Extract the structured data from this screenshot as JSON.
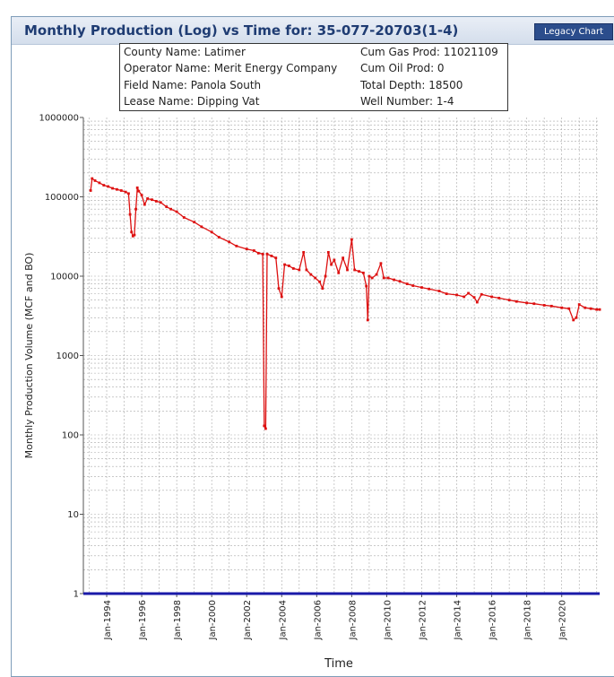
{
  "header": {
    "title": "Monthly Production (Log) vs Time for: 35-077-20703(1-4)",
    "legacy_button": "Legacy Chart"
  },
  "info": {
    "county": "County Name:  Latimer",
    "operator": "Operator Name:  Merit Energy Company",
    "field": "Field Name:  Panola South",
    "lease": "Lease Name:  Dipping Vat",
    "cum_gas": "Cum Gas Prod:  11021109",
    "cum_oil": "Cum Oil Prod:  0",
    "total_depth": "Total Depth:  18500",
    "well_number": "Well Number:  1-4"
  },
  "chart_data": {
    "type": "line",
    "title": "Monthly Production (Log) vs Time for: 35-077-20703(1-4)",
    "xlabel": "Time",
    "ylabel": "Monthly Production Volume (MCF and BO)",
    "y_scale": "log",
    "ylim": [
      1,
      1000000
    ],
    "xlim": [
      "1992-09",
      "2022-03"
    ],
    "grid": true,
    "y_ticks": [
      "1",
      "10",
      "100",
      "1000",
      "10000",
      "100000",
      "1000000"
    ],
    "x_ticks": [
      "Jan-1994",
      "Jan-1996",
      "Jan-1998",
      "Jan-2000",
      "Jan-2002",
      "Jan-2004",
      "Jan-2006",
      "Jan-2008",
      "Jan-2010",
      "Jan-2012",
      "Jan-2014",
      "Jan-2016",
      "Jan-2018",
      "Jan-2020"
    ],
    "series": [
      {
        "color": "#dd1111",
        "points": [
          [
            "1993-02",
            120000
          ],
          [
            "1993-03",
            170000
          ],
          [
            "1993-05",
            160000
          ],
          [
            "1993-08",
            150000
          ],
          [
            "1993-11",
            140000
          ],
          [
            "1994-02",
            135000
          ],
          [
            "1994-05",
            128000
          ],
          [
            "1994-08",
            124000
          ],
          [
            "1994-11",
            120000
          ],
          [
            "1995-02",
            115000
          ],
          [
            "1995-04",
            110000
          ],
          [
            "1995-05",
            60000
          ],
          [
            "1995-06",
            36000
          ],
          [
            "1995-07",
            32000
          ],
          [
            "1995-08",
            33000
          ],
          [
            "1995-09",
            70000
          ],
          [
            "1995-10",
            130000
          ],
          [
            "1995-11",
            118000
          ],
          [
            "1996-01",
            105000
          ],
          [
            "1996-03",
            80000
          ],
          [
            "1996-05",
            95000
          ],
          [
            "1996-08",
            92000
          ],
          [
            "1996-11",
            88000
          ],
          [
            "1997-02",
            85000
          ],
          [
            "1997-06",
            75000
          ],
          [
            "1997-09",
            70000
          ],
          [
            "1998-01",
            65000
          ],
          [
            "1998-06",
            55000
          ],
          [
            "1999-01",
            48000
          ],
          [
            "1999-06",
            42000
          ],
          [
            "2000-01",
            36000
          ],
          [
            "2000-06",
            31000
          ],
          [
            "2001-01",
            27000
          ],
          [
            "2001-06",
            24000
          ],
          [
            "2002-01",
            22000
          ],
          [
            "2002-06",
            21000
          ],
          [
            "2002-09",
            19500
          ],
          [
            "2002-12",
            19000
          ],
          [
            "2003-01",
            130
          ],
          [
            "2003-02",
            120
          ],
          [
            "2003-03",
            19000
          ],
          [
            "2003-06",
            18000
          ],
          [
            "2003-09",
            17000
          ],
          [
            "2003-11",
            7000
          ],
          [
            "2004-01",
            5500
          ],
          [
            "2004-03",
            14000
          ],
          [
            "2004-06",
            13500
          ],
          [
            "2004-09",
            12500
          ],
          [
            "2005-01",
            12000
          ],
          [
            "2005-04",
            20000
          ],
          [
            "2005-06",
            12000
          ],
          [
            "2005-09",
            10500
          ],
          [
            "2005-12",
            9500
          ],
          [
            "2006-03",
            8500
          ],
          [
            "2006-05",
            7000
          ],
          [
            "2006-07",
            10000
          ],
          [
            "2006-09",
            20000
          ],
          [
            "2006-11",
            14000
          ],
          [
            "2007-01",
            16000
          ],
          [
            "2007-04",
            11000
          ],
          [
            "2007-07",
            17000
          ],
          [
            "2007-10",
            12000
          ],
          [
            "2008-01",
            29000
          ],
          [
            "2008-03",
            12000
          ],
          [
            "2008-06",
            11500
          ],
          [
            "2008-09",
            11000
          ],
          [
            "2008-11",
            7500
          ],
          [
            "2008-12",
            2800
          ],
          [
            "2009-01",
            10000
          ],
          [
            "2009-03",
            9500
          ],
          [
            "2009-06",
            10500
          ],
          [
            "2009-09",
            14500
          ],
          [
            "2009-11",
            9500
          ],
          [
            "2010-02",
            9500
          ],
          [
            "2010-06",
            9000
          ],
          [
            "2010-10",
            8600
          ],
          [
            "2011-03",
            8000
          ],
          [
            "2011-07",
            7600
          ],
          [
            "2012-01",
            7200
          ],
          [
            "2012-06",
            6900
          ],
          [
            "2013-01",
            6500
          ],
          [
            "2013-06",
            6000
          ],
          [
            "2014-01",
            5800
          ],
          [
            "2014-06",
            5500
          ],
          [
            "2014-09",
            6100
          ],
          [
            "2015-01",
            5400
          ],
          [
            "2015-03",
            4700
          ],
          [
            "2015-06",
            5900
          ],
          [
            "2016-01",
            5500
          ],
          [
            "2016-06",
            5300
          ],
          [
            "2017-01",
            5000
          ],
          [
            "2017-06",
            4800
          ],
          [
            "2018-01",
            4600
          ],
          [
            "2018-06",
            4500
          ],
          [
            "2019-01",
            4300
          ],
          [
            "2019-06",
            4200
          ],
          [
            "2020-01",
            4000
          ],
          [
            "2020-06",
            3900
          ],
          [
            "2020-09",
            2800
          ],
          [
            "2020-11",
            3000
          ],
          [
            "2021-01",
            4400
          ],
          [
            "2021-05",
            4000
          ],
          [
            "2021-09",
            3900
          ],
          [
            "2022-01",
            3800
          ],
          [
            "2022-03",
            3800
          ]
        ]
      },
      {
        "color": "#1a1aa8",
        "points": [
          [
            "1992-09",
            1
          ],
          [
            "2022-03",
            1
          ]
        ]
      }
    ]
  }
}
